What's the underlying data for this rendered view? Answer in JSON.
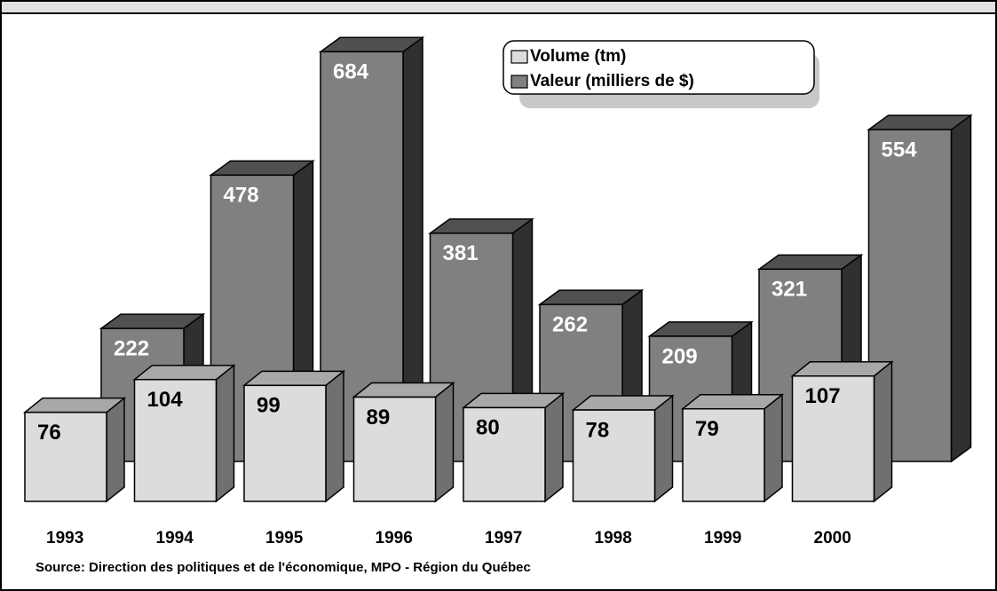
{
  "chart_data": {
    "type": "bar3d",
    "categories": [
      "1993",
      "1994",
      "1995",
      "1996",
      "1997",
      "1998",
      "1999",
      "2000"
    ],
    "series": [
      {
        "name": "Volume (tm)",
        "color": "#dcdcdc",
        "values": [
          76,
          104,
          99,
          89,
          80,
          78,
          79,
          107
        ]
      },
      {
        "name": "Valeur (milliers de $)",
        "color": "#808080",
        "values": [
          222,
          478,
          684,
          381,
          262,
          209,
          321,
          554
        ]
      }
    ],
    "source": "Source: Direction des politiques et de l'économique, MPO - Région du Québec",
    "legend": "top-right"
  }
}
